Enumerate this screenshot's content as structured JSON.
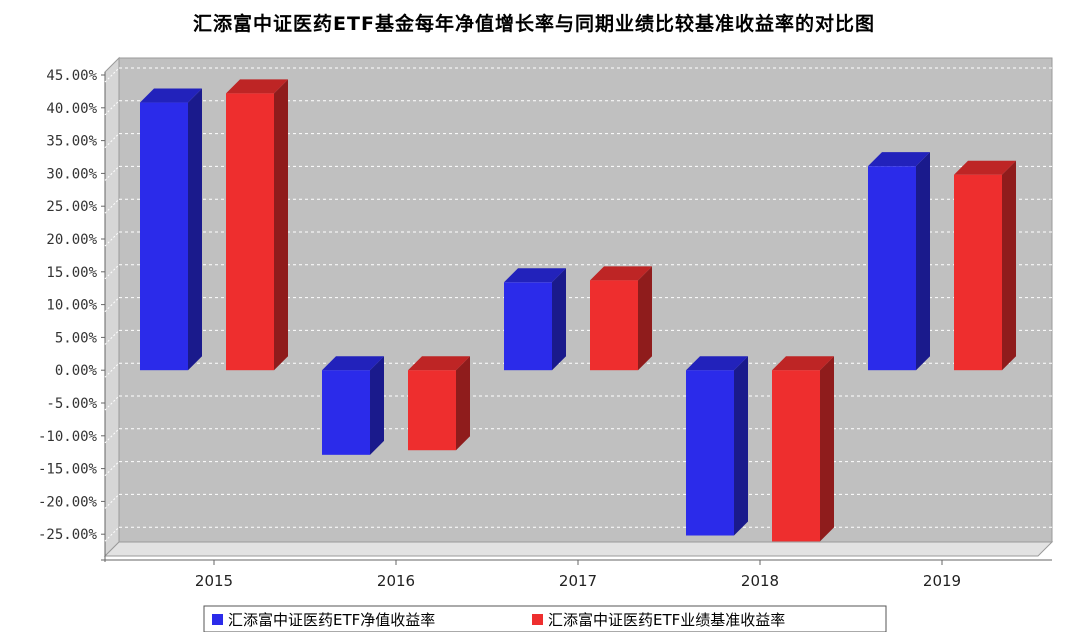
{
  "chart_data": {
    "type": "bar",
    "title": "汇添富中证医药ETF基金每年净值增长率与同期业绩比较基准收益率的对比图",
    "categories": [
      "2015",
      "2016",
      "2017",
      "2018",
      "2019"
    ],
    "series": [
      {
        "name": "汇添富中证医药ETF净值收益率",
        "values": [
          40.8,
          -12.9,
          13.4,
          -25.2,
          31.1
        ],
        "color": "#2b2bea"
      },
      {
        "name": "汇添富中证医药ETF业绩基准收益率",
        "values": [
          42.2,
          -12.2,
          13.7,
          -26.1,
          29.8
        ],
        "color": "#ee2e2e"
      }
    ],
    "ylim": [
      -30,
      45
    ],
    "yticks": [
      45,
      40,
      35,
      30,
      25,
      20,
      15,
      10,
      5,
      0,
      -5,
      -10,
      -15,
      -20,
      -25
    ],
    "ytick_labels": [
      "45.00%",
      "40.00%",
      "35.00%",
      "30.00%",
      "25.00%",
      "20.00%",
      "15.00%",
      "10.00%",
      "5.00%",
      "0.00%",
      "-5.00%",
      "-10.00%",
      "-15.00%",
      "-20.00%",
      "-25.00%"
    ],
    "xlabel": "",
    "ylabel": "",
    "grid": true,
    "legend_position": "bottom",
    "style": "3d"
  }
}
